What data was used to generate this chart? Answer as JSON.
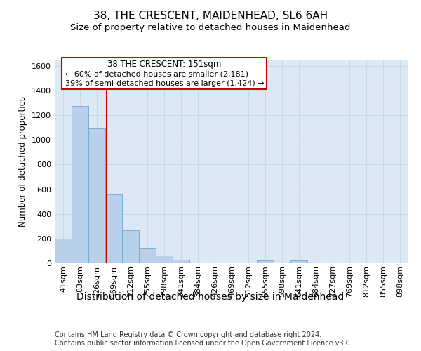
{
  "title1": "38, THE CRESCENT, MAIDENHEAD, SL6 6AH",
  "title2": "Size of property relative to detached houses in Maidenhead",
  "xlabel": "Distribution of detached houses by size in Maidenhead",
  "ylabel": "Number of detached properties",
  "footer1": "Contains HM Land Registry data © Crown copyright and database right 2024.",
  "footer2": "Contains public sector information licensed under the Open Government Licence v3.0.",
  "bin_labels": [
    "41sqm",
    "83sqm",
    "126sqm",
    "169sqm",
    "212sqm",
    "255sqm",
    "298sqm",
    "341sqm",
    "384sqm",
    "426sqm",
    "469sqm",
    "512sqm",
    "555sqm",
    "598sqm",
    "641sqm",
    "684sqm",
    "727sqm",
    "769sqm",
    "812sqm",
    "855sqm",
    "898sqm"
  ],
  "bar_heights": [
    200,
    1275,
    1095,
    555,
    270,
    125,
    65,
    30,
    0,
    0,
    0,
    0,
    25,
    0,
    25,
    0,
    0,
    0,
    0,
    0,
    0
  ],
  "bar_color": "#b8d0ea",
  "bar_edge_color": "#7aafd4",
  "grid_color": "#c5d8ec",
  "background_color": "#dce9f5",
  "vline_color": "#cc0000",
  "annotation_line1": "38 THE CRESCENT: 151sqm",
  "annotation_line2": "← 60% of detached houses are smaller (2,181)",
  "annotation_line3": "39% of semi-detached houses are larger (1,424) →",
  "annotation_box_color": "#cc0000",
  "ylim": [
    0,
    1650
  ],
  "yticks": [
    0,
    200,
    400,
    600,
    800,
    1000,
    1200,
    1400,
    1600
  ],
  "title1_fontsize": 11,
  "title2_fontsize": 9.5,
  "ylabel_fontsize": 8.5,
  "xlabel_fontsize": 10,
  "tick_fontsize": 8,
  "footer_fontsize": 7
}
